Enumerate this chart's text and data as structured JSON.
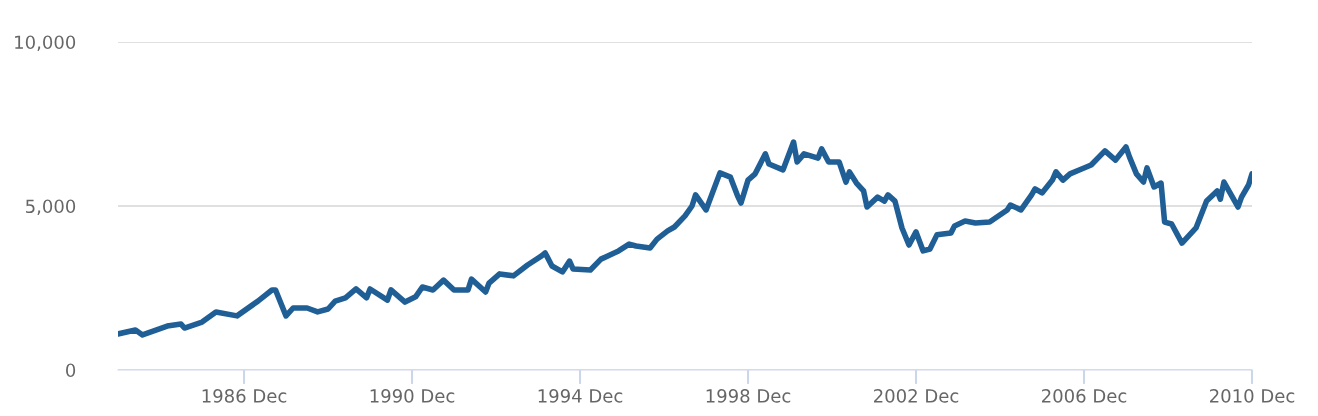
{
  "chart_data": {
    "type": "line",
    "x": [
      "1983-12",
      "1984-05",
      "1984-07",
      "1985-02",
      "1985-06",
      "1985-07",
      "1985-12",
      "1986-04",
      "1986-10",
      "1987-04",
      "1987-08",
      "1987-09",
      "1987-12",
      "1988-02",
      "1988-06",
      "1988-09",
      "1988-12",
      "1989-02",
      "1989-05",
      "1989-08",
      "1989-11",
      "1989-12",
      "1990-05",
      "1990-06",
      "1990-10",
      "1991-01",
      "1991-03",
      "1991-06",
      "1991-09",
      "1991-12",
      "1992-04",
      "1992-05",
      "1992-09",
      "1992-10",
      "1993-01",
      "1993-05",
      "1993-09",
      "1994-01",
      "1994-02",
      "1994-04",
      "1994-07",
      "1994-09",
      "1994-10",
      "1995-03",
      "1995-06",
      "1995-11",
      "1996-02",
      "1996-04",
      "1996-08",
      "1996-10",
      "1997-01",
      "1997-03",
      "1997-06",
      "1997-08",
      "1997-09",
      "1997-12",
      "1998-04",
      "1998-07",
      "1998-09",
      "1998-10",
      "1998-12",
      "1999-02",
      "1999-05",
      "1999-06",
      "1999-10",
      "2000-01",
      "2000-02",
      "2000-04",
      "2000-08",
      "2000-09",
      "2000-11",
      "2001-02",
      "2001-04",
      "2001-05",
      "2001-07",
      "2001-09",
      "2001-10",
      "2002-01",
      "2002-03",
      "2002-04",
      "2002-06",
      "2002-08",
      "2002-10",
      "2002-12",
      "2003-02",
      "2003-04",
      "2003-06",
      "2003-10",
      "2003-11",
      "2004-02",
      "2004-05",
      "2004-09",
      "2005-02",
      "2005-03",
      "2005-06",
      "2005-09",
      "2005-10",
      "2005-12",
      "2006-03",
      "2006-04",
      "2006-06",
      "2006-08",
      "2006-12",
      "2007-02",
      "2007-06",
      "2007-09",
      "2007-12",
      "2008-01",
      "2008-03",
      "2008-05",
      "2008-06",
      "2008-08",
      "2008-10",
      "2008-11",
      "2009-01",
      "2009-04",
      "2009-08",
      "2009-11",
      "2010-02",
      "2010-03",
      "2010-04",
      "2010-08",
      "2010-09",
      "2010-11",
      "2010-12"
    ],
    "series": [
      {
        "color": "#1f5f96",
        "values": [
          1100,
          1220,
          1070,
          1340,
          1400,
          1280,
          1460,
          1770,
          1650,
          2100,
          2440,
          2440,
          1650,
          1890,
          1890,
          1770,
          1860,
          2100,
          2200,
          2470,
          2200,
          2470,
          2130,
          2440,
          2070,
          2230,
          2530,
          2440,
          2740,
          2440,
          2440,
          2770,
          2380,
          2650,
          2930,
          2870,
          3200,
          3480,
          3570,
          3170,
          2990,
          3320,
          3080,
          3050,
          3380,
          3630,
          3840,
          3780,
          3720,
          3990,
          4240,
          4360,
          4700,
          5000,
          5340,
          4880,
          6010,
          5880,
          5310,
          5090,
          5790,
          5980,
          6590,
          6280,
          6100,
          6950,
          6340,
          6590,
          6460,
          6740,
          6340,
          6340,
          5730,
          6040,
          5700,
          5460,
          4970,
          5270,
          5150,
          5340,
          5150,
          4330,
          3810,
          4210,
          3630,
          3690,
          4120,
          4180,
          4390,
          4540,
          4480,
          4510,
          4880,
          5030,
          4880,
          5340,
          5520,
          5400,
          5790,
          6040,
          5790,
          5980,
          6160,
          6250,
          6680,
          6400,
          6800,
          6490,
          5980,
          5730,
          6160,
          5580,
          5700,
          4510,
          4450,
          3870,
          4330,
          5150,
          5460,
          5210,
          5730,
          4970,
          5270,
          5640,
          5980
        ]
      }
    ],
    "xlim": [
      "1983-12",
      "2010-12"
    ],
    "xticks": [
      {
        "value": "1986-12",
        "label": "1986 Dec"
      },
      {
        "value": "1990-12",
        "label": "1990 Dec"
      },
      {
        "value": "1994-12",
        "label": "1994 Dec"
      },
      {
        "value": "1998-12",
        "label": "1998 Dec"
      },
      {
        "value": "2002-12",
        "label": "2002 Dec"
      },
      {
        "value": "2006-12",
        "label": "2006 Dec"
      },
      {
        "value": "2010-12",
        "label": "2010 Dec"
      }
    ],
    "ylim": [
      0,
      10000
    ],
    "yticks": [
      0,
      {
        "value": 5000,
        "label": "5,000"
      },
      {
        "value": 10000,
        "label": "10,000"
      }
    ],
    "grid": "y",
    "line_style": "solid"
  }
}
